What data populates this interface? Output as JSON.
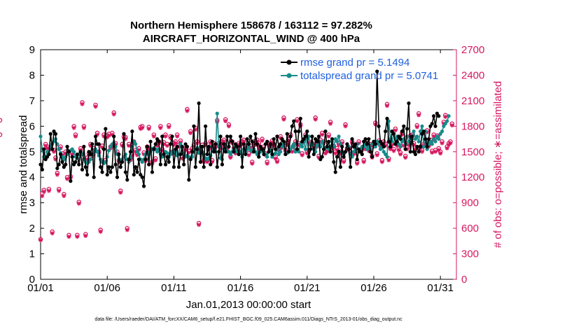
{
  "chart_data": {
    "type": "line",
    "title_line1": "Northern Hemisphere 158678 / 163112 = 97.282%",
    "title_line2": "AIRCRAFT_HORIZONTAL_WIND @ 400 hPa",
    "xlabel": "Jan.01,2013 00:00:00 start",
    "ylabel_left": "rmse and totalspread",
    "ylabel_right": "# of obs: o=possible; ∗=assimilated",
    "footnote": "data file: /Users/raeder/DAI/ATM_forcXX/CAM6_setup/f.e21.FHIST_BGC.f09_025.CAM6assim.011/Diags_NTrS_2013-01/obs_diag_output.nc",
    "xlim": [
      1,
      32.2
    ],
    "ylim_left": [
      0,
      9
    ],
    "ylim_right": [
      0,
      2700
    ],
    "x_ticks": [
      1,
      6,
      11,
      16,
      21,
      26,
      31
    ],
    "x_tick_labels": [
      "01/01",
      "01/06",
      "01/11",
      "01/16",
      "01/21",
      "01/26",
      "01/31"
    ],
    "y_ticks_left": [
      0,
      1,
      2,
      3,
      4,
      5,
      6,
      7,
      8,
      9
    ],
    "y_tick_labels_left": [
      "0",
      "1",
      "2",
      "3",
      "4",
      "5",
      "6",
      "7",
      "8",
      "9"
    ],
    "y_ticks_right": [
      0,
      300,
      600,
      900,
      1200,
      1500,
      1800,
      2100,
      2400,
      2700
    ],
    "y_tick_labels_right": [
      "0",
      "300",
      "600",
      "900",
      "1200",
      "1500",
      "1800",
      "2100",
      "2400",
      "2700"
    ],
    "legend": [
      {
        "name": "rmse grand pr = 5.1494",
        "color": "#000000"
      },
      {
        "name": "totalspread grand pr = 5.0741",
        "color": "#178a8a"
      }
    ],
    "colors": {
      "rmse": "#000000",
      "spread": "#178a8a",
      "obs": "#d6175f",
      "right_axis": "#d6175f"
    },
    "x": [
      1.0,
      1.125,
      1.25,
      1.375,
      1.5,
      1.625,
      1.75,
      1.875,
      2.0,
      2.125,
      2.25,
      2.375,
      2.5,
      2.625,
      2.75,
      2.875,
      3.0,
      3.125,
      3.25,
      3.375,
      3.5,
      3.625,
      3.75,
      3.875,
      4.0,
      4.125,
      4.25,
      4.375,
      4.5,
      4.625,
      4.75,
      4.875,
      5.0,
      5.125,
      5.25,
      5.375,
      5.5,
      5.625,
      5.75,
      5.875,
      6.0,
      6.125,
      6.25,
      6.375,
      6.5,
      6.625,
      6.75,
      6.875,
      7.0,
      7.125,
      7.25,
      7.375,
      7.5,
      7.625,
      7.75,
      7.875,
      8.0,
      8.125,
      8.25,
      8.375,
      8.5,
      8.625,
      8.75,
      8.875,
      9.0,
      9.125,
      9.25,
      9.375,
      9.5,
      9.625,
      9.75,
      9.875,
      10.0,
      10.125,
      10.25,
      10.375,
      10.5,
      10.625,
      10.75,
      10.875,
      11.0,
      11.125,
      11.25,
      11.375,
      11.5,
      11.625,
      11.75,
      11.875,
      12.0,
      12.125,
      12.25,
      12.375,
      12.5,
      12.625,
      12.75,
      12.875,
      13.0,
      13.125,
      13.25,
      13.375,
      13.5,
      13.625,
      13.75,
      13.875,
      14.0,
      14.125,
      14.25,
      14.375,
      14.5,
      14.625,
      14.75,
      14.875,
      15.0,
      15.125,
      15.25,
      15.375,
      15.5,
      15.625,
      15.75,
      15.875,
      16.0,
      16.125,
      16.25,
      16.375,
      16.5,
      16.625,
      16.75,
      16.875,
      17.0,
      17.125,
      17.25,
      17.375,
      17.5,
      17.625,
      17.75,
      17.875,
      18.0,
      18.125,
      18.25,
      18.375,
      18.5,
      18.625,
      18.75,
      18.875,
      19.0,
      19.125,
      19.25,
      19.375,
      19.5,
      19.625,
      19.75,
      19.875,
      20.0,
      20.125,
      20.25,
      20.375,
      20.5,
      20.625,
      20.75,
      20.875,
      21.0,
      21.125,
      21.25,
      21.375,
      21.5,
      21.625,
      21.75,
      21.875,
      22.0,
      22.125,
      22.25,
      22.375,
      22.5,
      22.625,
      22.75,
      22.875,
      23.0,
      23.125,
      23.25,
      23.375,
      23.5,
      23.625,
      23.75,
      23.875,
      24.0,
      24.125,
      24.25,
      24.375,
      24.5,
      24.625,
      24.75,
      24.875,
      25.0,
      25.125,
      25.25,
      25.375,
      25.5,
      25.625,
      25.75,
      25.875,
      26.0,
      26.125,
      26.25,
      26.375,
      26.5,
      26.625,
      26.75,
      26.875,
      27.0,
      27.125,
      27.25,
      27.375,
      27.5,
      27.625,
      27.75,
      27.875,
      28.0,
      28.125,
      28.25,
      28.375,
      28.5,
      28.625,
      28.75,
      28.875,
      29.0,
      29.125,
      29.25,
      29.375,
      29.5,
      29.625,
      29.75,
      29.875,
      30.0,
      30.125,
      30.25,
      30.375,
      30.5,
      30.625,
      30.75,
      30.875,
      31.0,
      31.125,
      31.25,
      31.375,
      31.5,
      31.625,
      31.75,
      31.875
    ],
    "rmse": [
      4.5,
      4.3,
      5.1,
      4.7,
      4.8,
      4.9,
      5.7,
      5.1,
      5.8,
      5.7,
      4.35,
      4.5,
      4.9,
      4.6,
      4.4,
      4.5,
      5.2,
      5.0,
      3.85,
      4.8,
      4.5,
      4.6,
      4.9,
      4.5,
      5.0,
      4.3,
      5.2,
      4.4,
      4.1,
      5.0,
      4.9,
      5.3,
      4.0,
      5.6,
      5.3,
      5.3,
      4.4,
      4.2,
      5.1,
      5.9,
      4.1,
      4.4,
      4.2,
      4.4,
      5.6,
      4.5,
      4.0,
      4.9,
      4.4,
      4.6,
      5.7,
      4.2,
      3.9,
      4.7,
      5.0,
      5.8,
      4.1,
      4.4,
      4.2,
      4.7,
      4.1,
      4.0,
      3.65,
      4.7,
      5.2,
      4.5,
      5.4,
      4.2,
      5.1,
      5.3,
      5.5,
      5.4,
      4.5,
      5.6,
      4.9,
      4.5,
      4.8,
      4.6,
      5.3,
      5.6,
      4.4,
      5.1,
      5.2,
      4.4,
      4.9,
      5.2,
      4.5,
      5.3,
      5.2,
      3.9,
      4.7,
      5.0,
      6.0,
      4.4,
      5.1,
      6.9,
      4.6,
      5.2,
      4.4,
      6.0,
      4.9,
      5.2,
      4.5,
      5.4,
      5.0,
      5.3,
      4.4,
      5.0,
      5.6,
      4.5,
      5.3,
      5.0,
      5.6,
      5.2,
      5.6,
      5.4,
      5.0,
      5.3,
      5.2,
      4.9,
      5.6,
      4.4,
      5.3,
      4.9,
      5.5,
      5.3,
      5.6,
      5.4,
      5.0,
      5.7,
      5.3,
      4.8,
      5.2,
      5.1,
      4.9,
      5.3,
      5.4,
      5.0,
      5.3,
      4.9,
      5.5,
      5.1,
      5.6,
      5.2,
      5.3,
      5.5,
      5.4,
      4.9,
      5.7,
      5.0,
      5.6,
      6.0,
      6.2,
      5.8,
      5.1,
      5.8,
      6.3,
      5.4,
      5.5,
      5.6,
      5.8,
      4.8,
      5.1,
      5.6,
      4.9,
      5.5,
      5.4,
      5.6,
      4.7,
      4.8,
      5.1,
      5.8,
      5.2,
      5.4,
      5.0,
      5.5,
      4.6,
      4.2,
      4.8,
      5.0,
      4.4,
      5.2,
      4.8,
      5.0,
      5.3,
      5.1,
      4.4,
      5.5,
      5.2,
      5.3,
      4.7,
      5.1,
      5.0,
      4.9,
      5.4,
      5.5,
      5.3,
      5.5,
      5.0,
      4.8,
      5.4,
      5.3,
      8.15,
      6.0,
      5.4,
      5.3,
      5.2,
      5.8,
      6.3,
      5.4,
      5.2,
      5.8,
      5.7,
      5.3,
      5.4,
      5.6,
      5.5,
      5.8,
      6.0,
      5.1,
      5.9,
      6.9,
      5.0,
      5.6,
      5.0,
      4.9,
      5.2,
      5.0,
      5.2,
      5.7,
      5.8,
      5.5,
      5.2,
      5.5,
      6.0,
      6.1,
      6.4,
      6.0,
      6.5,
      6.4
    ],
    "totalspread": [
      5.6,
      5.1,
      4.8,
      4.7,
      5.0,
      4.9,
      5.2,
      5.3,
      5.4,
      5.5,
      5.3,
      5.1,
      4.95,
      4.8,
      4.7,
      4.8,
      4.9,
      5.0,
      5.05,
      5.1,
      5.0,
      4.8,
      4.75,
      4.9,
      5.0,
      4.9,
      4.7,
      4.6,
      4.55,
      4.6,
      4.7,
      4.9,
      5.0,
      5.1,
      5.0,
      4.85,
      4.7,
      4.6,
      4.55,
      4.6,
      4.8,
      5.05,
      5.2,
      5.3,
      5.35,
      5.2,
      4.9,
      4.7,
      4.65,
      4.7,
      4.8,
      4.9,
      4.7,
      4.6,
      4.75,
      5.2,
      5.4,
      5.3,
      5.0,
      4.9,
      4.7,
      4.6,
      4.7,
      4.9,
      5.0,
      4.9,
      5.0,
      5.1,
      5.15,
      5.1,
      5.0,
      5.1,
      4.9,
      4.8,
      4.85,
      5.0,
      4.95,
      4.8,
      4.9,
      5.0,
      4.95,
      5.0,
      4.85,
      4.9,
      5.3,
      5.0,
      4.9,
      4.8,
      4.85,
      4.8,
      4.7,
      4.8,
      5.0,
      5.1,
      5.15,
      4.95,
      5.2,
      5.0,
      4.9,
      4.75,
      4.7,
      4.75,
      4.85,
      5.2,
      5.05,
      5.0,
      6.5,
      5.2,
      4.75,
      4.7,
      5.1,
      5.3,
      5.0,
      5.0,
      4.9,
      5.0,
      5.1,
      5.2,
      5.0,
      4.9,
      5.0,
      4.8,
      5.1,
      5.0,
      5.1,
      5.2,
      5.05,
      5.0,
      5.1,
      5.0,
      4.9,
      4.8,
      5.0,
      5.1,
      5.0,
      4.9,
      4.8,
      5.0,
      5.05,
      4.8,
      4.9,
      4.95,
      5.1,
      4.9,
      5.0,
      5.2,
      5.3,
      4.9,
      4.95,
      5.0,
      5.1,
      5.2,
      5.3,
      5.0,
      5.1,
      5.0,
      5.3,
      5.2,
      5.4,
      5.1,
      5.5,
      5.6,
      5.25,
      5.3,
      5.1,
      5.0,
      5.25,
      5.3,
      5.2,
      5.4,
      5.1,
      5.15,
      5.2,
      5.1,
      5.2,
      5.4,
      5.2,
      5.5,
      5.4,
      5.6,
      5.3,
      5.0,
      4.9,
      5.0,
      5.3,
      5.2,
      4.9,
      4.8,
      5.0,
      5.1,
      5.3,
      5.0,
      5.1,
      5.2,
      5.2,
      5.3,
      5.1,
      5.2,
      5.1,
      5.3,
      5.4,
      5.2,
      5.4,
      5.3,
      5.1,
      5.2,
      5.0,
      4.9,
      4.8,
      6.2,
      5.5,
      5.4,
      5.7,
      5.5,
      5.6,
      5.3,
      5.2,
      5.4,
      5.5,
      5.3,
      5.6,
      5.4,
      5.3,
      5.5,
      5.8,
      5.5,
      5.6,
      5.4,
      5.8,
      6.0,
      5.2,
      5.8,
      5.1,
      5.3,
      5.4,
      5.3,
      5.5,
      5.4,
      5.6,
      5.5,
      5.7,
      5.8,
      6.0,
      6.1,
      6.2,
      6.4
    ],
    "obs_possible": [
      470,
      1010,
      1050,
      1590,
      1560,
      1060,
      1550,
      560,
      1520,
      1430,
      1250,
      1060,
      1560,
      1480,
      1000,
      1500,
      1200,
      520,
      1210,
      1490,
      1800,
      1700,
      520,
      910,
      1540,
      2080,
      1800,
      530,
      1430,
      1480,
      1590,
      1470,
      1540,
      2050,
      1720,
      1500,
      580,
      1570,
      1700,
      1400,
      1690,
      1710,
      1560,
      1720,
      1960,
      1600,
      1500,
      1400,
      1040,
      1590,
      1680,
      1670,
      600,
      1590,
      1420,
      1470,
      1620,
      1520,
      1480,
      1540,
      1790,
      1800,
      1490,
      1410,
      1560,
      1790,
      1530,
      1380,
      1700,
      1420,
      1590,
      1620,
      1800,
      1530,
      1610,
      1700,
      1590,
      1810,
      1680,
      1500,
      1600,
      1620,
      1700,
      1580,
      1630,
      1440,
      1500,
      1540,
      2000,
      1510,
      1740,
      1540,
      1580,
      1780,
      1620,
      660,
      1520,
      1580,
      1400,
      1600,
      1400,
      1550,
      1620,
      1400,
      1600,
      1570,
      1870,
      1600,
      1560,
      1620,
      1640,
      1880,
      1550,
      1820,
      1450,
      1620,
      1540,
      1500,
      1520,
      1600,
      1590,
      1620,
      1640,
      1520,
      1560,
      1480,
      1570,
      1380,
      1620,
      1600,
      1640,
      1600,
      1540,
      1650,
      1560,
      1480,
      1380,
      1600,
      1590,
      1630,
      1590,
      1440,
      1400,
      1540,
      1680,
      1570,
      1900,
      1520,
      1600,
      1650,
      1700,
      1520,
      1580,
      1620,
      1880,
      1600,
      1820,
      1480,
      1630,
      1700,
      1500,
      1520,
      1610,
      1600,
      1560,
      1900,
      1580,
      1450,
      1640,
      1720,
      1620,
      1500,
      1520,
      1700,
      1850,
      1560,
      1570,
      1500,
      1540,
      1600,
      1500,
      1620,
      1400,
      1820,
      1540,
      1550,
      1500,
      1620,
      1490,
      1560,
      1380,
      1620,
      1520,
      1540,
      1400,
      1550,
      1600,
      1530,
      1590,
      1450,
      1580,
      1840,
      1480,
      1630,
      1580,
      1400,
      1620,
      1590,
      2060,
      1420,
      1550,
      1600,
      1530,
      1770,
      1590,
      1540,
      1490,
      1720,
      1590,
      1450,
      1550,
      1600,
      1690,
      1700,
      1600,
      1550,
      1810,
      1950,
      1560,
      1520,
      1590,
      1620,
      1750,
      1580,
      1640,
      1510,
      1700,
      1520,
      1690,
      1540,
      1500,
      1620,
      1850,
      1930,
      1560,
      1600,
      1620,
      1830,
      1870,
      1700
    ],
    "obs_assimilated": [
      460,
      980,
      1030,
      1570,
      1540,
      1040,
      1530,
      540,
      1500,
      1410,
      1230,
      1040,
      1540,
      1460,
      980,
      1480,
      1180,
      500,
      1190,
      1470,
      1780,
      1680,
      500,
      890,
      1520,
      2060,
      1780,
      510,
      1410,
      1460,
      1570,
      1450,
      1520,
      2030,
      1700,
      1480,
      560,
      1550,
      1680,
      1380,
      1670,
      1690,
      1540,
      1700,
      1940,
      1580,
      1480,
      1380,
      1020,
      1570,
      1660,
      1650,
      580,
      1570,
      1400,
      1450,
      1600,
      1500,
      1460,
      1520,
      1770,
      1780,
      1470,
      1390,
      1540,
      1770,
      1510,
      1360,
      1680,
      1400,
      1570,
      1600,
      1780,
      1510,
      1590,
      1680,
      1570,
      1790,
      1660,
      1480,
      1580,
      1600,
      1680,
      1560,
      1610,
      1420,
      1480,
      1520,
      1980,
      1490,
      1720,
      1520,
      1560,
      1760,
      1600,
      640,
      1500,
      1560,
      1380,
      1580,
      1380,
      1530,
      1600,
      1380,
      1580,
      1550,
      1850,
      1580,
      1540,
      1600,
      1620,
      1860,
      1530,
      1800,
      1430,
      1600,
      1520,
      1480,
      1500,
      1580,
      1570,
      1600,
      1620,
      1500,
      1540,
      1460,
      1550,
      1360,
      1600,
      1580,
      1620,
      1580,
      1520,
      1630,
      1540,
      1460,
      1360,
      1580,
      1570,
      1610,
      1570,
      1420,
      1380,
      1520,
      1660,
      1550,
      1880,
      1500,
      1580,
      1630,
      1680,
      1500,
      1560,
      1600,
      1860,
      1580,
      1800,
      1460,
      1610,
      1680,
      1480,
      1500,
      1590,
      1580,
      1540,
      1880,
      1560,
      1430,
      1620,
      1700,
      1600,
      1480,
      1500,
      1680,
      1830,
      1540,
      1550,
      1480,
      1520,
      1580,
      1480,
      1600,
      1380,
      1800,
      1520,
      1530,
      1480,
      1600,
      1470,
      1540,
      1360,
      1600,
      1500,
      1520,
      1380,
      1530,
      1580,
      1510,
      1570,
      1430,
      1560,
      1820,
      1460,
      1610,
      1560,
      1380,
      1600,
      1570,
      2040,
      1400,
      1530,
      1580,
      1510,
      1750,
      1570,
      1520,
      1470,
      1700,
      1570,
      1430,
      1530,
      1580,
      1670,
      1680,
      1580,
      1530,
      1790,
      1930,
      1540,
      1500,
      1570,
      1600,
      1730,
      1560,
      1620,
      1490,
      1680,
      1500,
      1670,
      1520,
      1480,
      1600,
      1830,
      1910,
      1540,
      1580,
      1600,
      1810,
      1850,
      1680
    ]
  }
}
